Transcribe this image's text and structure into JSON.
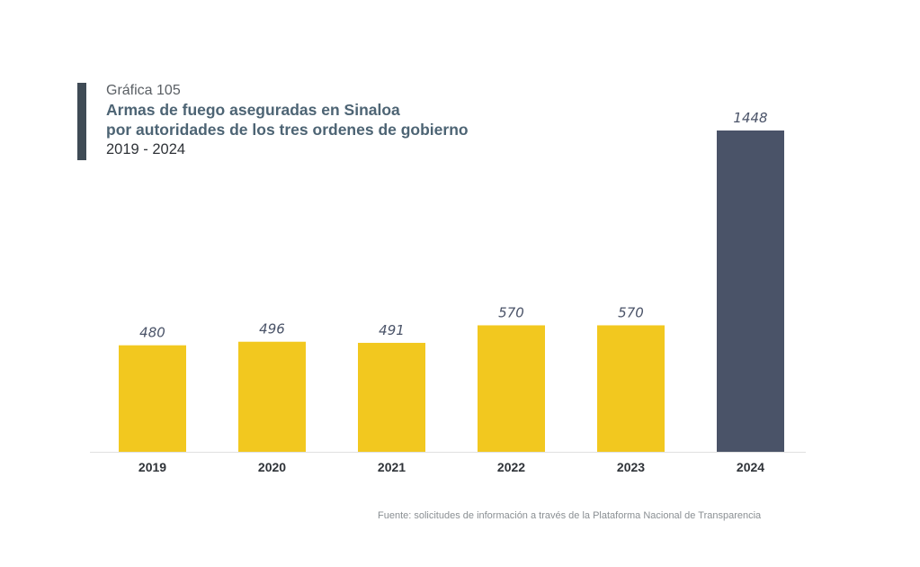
{
  "header": {
    "label": "Gráfica 105",
    "title_line1": "Armas de fuego aseguradas en Sinaloa",
    "title_line2": "por autoridades de los tres ordenes de gobierno",
    "subtitle": "2019 - 2024"
  },
  "chart_data": {
    "type": "bar",
    "title": "Armas de fuego aseguradas en Sinaloa por autoridades de los tres ordenes de gobierno",
    "subtitle": "2019 - 2024",
    "categories": [
      "2019",
      "2020",
      "2021",
      "2022",
      "2023",
      "2024"
    ],
    "values": [
      480,
      496,
      491,
      570,
      570,
      1448
    ],
    "colors": [
      "#f2c81f",
      "#f2c81f",
      "#f2c81f",
      "#f2c81f",
      "#f2c81f",
      "#4a5368"
    ],
    "xlabel": "",
    "ylabel": "",
    "ylim": [
      0,
      1448
    ],
    "grid": false,
    "legend": "none"
  },
  "source": "Fuente: solicitudes de información a través de la Plataforma Nacional de Transparencia",
  "colors": {
    "accent_bar": "#3f4b55",
    "title": "#4d6474",
    "bar_default": "#f2c81f",
    "bar_highlight": "#4a5368",
    "value_label": "#4a5368",
    "axis": "#e0e0e0"
  }
}
